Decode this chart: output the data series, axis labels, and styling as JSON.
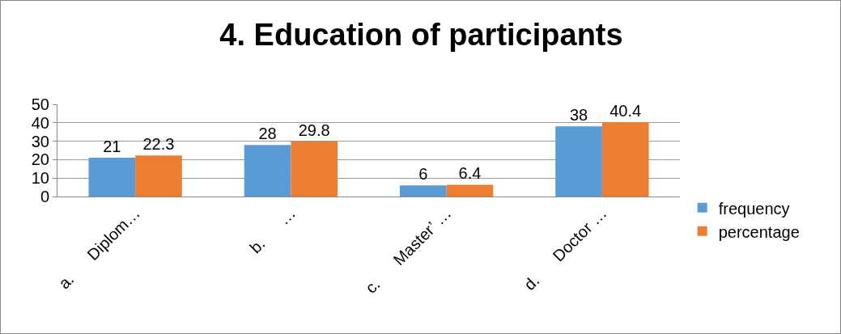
{
  "chart_data": {
    "type": "bar",
    "title": "4. Education of participants",
    "categories": [
      "a.      Diplom…",
      "b.      …",
      "c.      Master’ …",
      "d.      Doctor …"
    ],
    "series": [
      {
        "name": "frequency",
        "color": "#5b9bd5",
        "values": [
          21,
          28,
          6,
          38
        ]
      },
      {
        "name": "percentage",
        "color": "#ed7d31",
        "values": [
          22.3,
          29.8,
          6.4,
          40.4
        ]
      }
    ],
    "ylim": [
      0,
      50
    ],
    "yticks": [
      0,
      10,
      20,
      30,
      40,
      50
    ],
    "grid": "y",
    "legend": "right",
    "data_labels": true
  }
}
